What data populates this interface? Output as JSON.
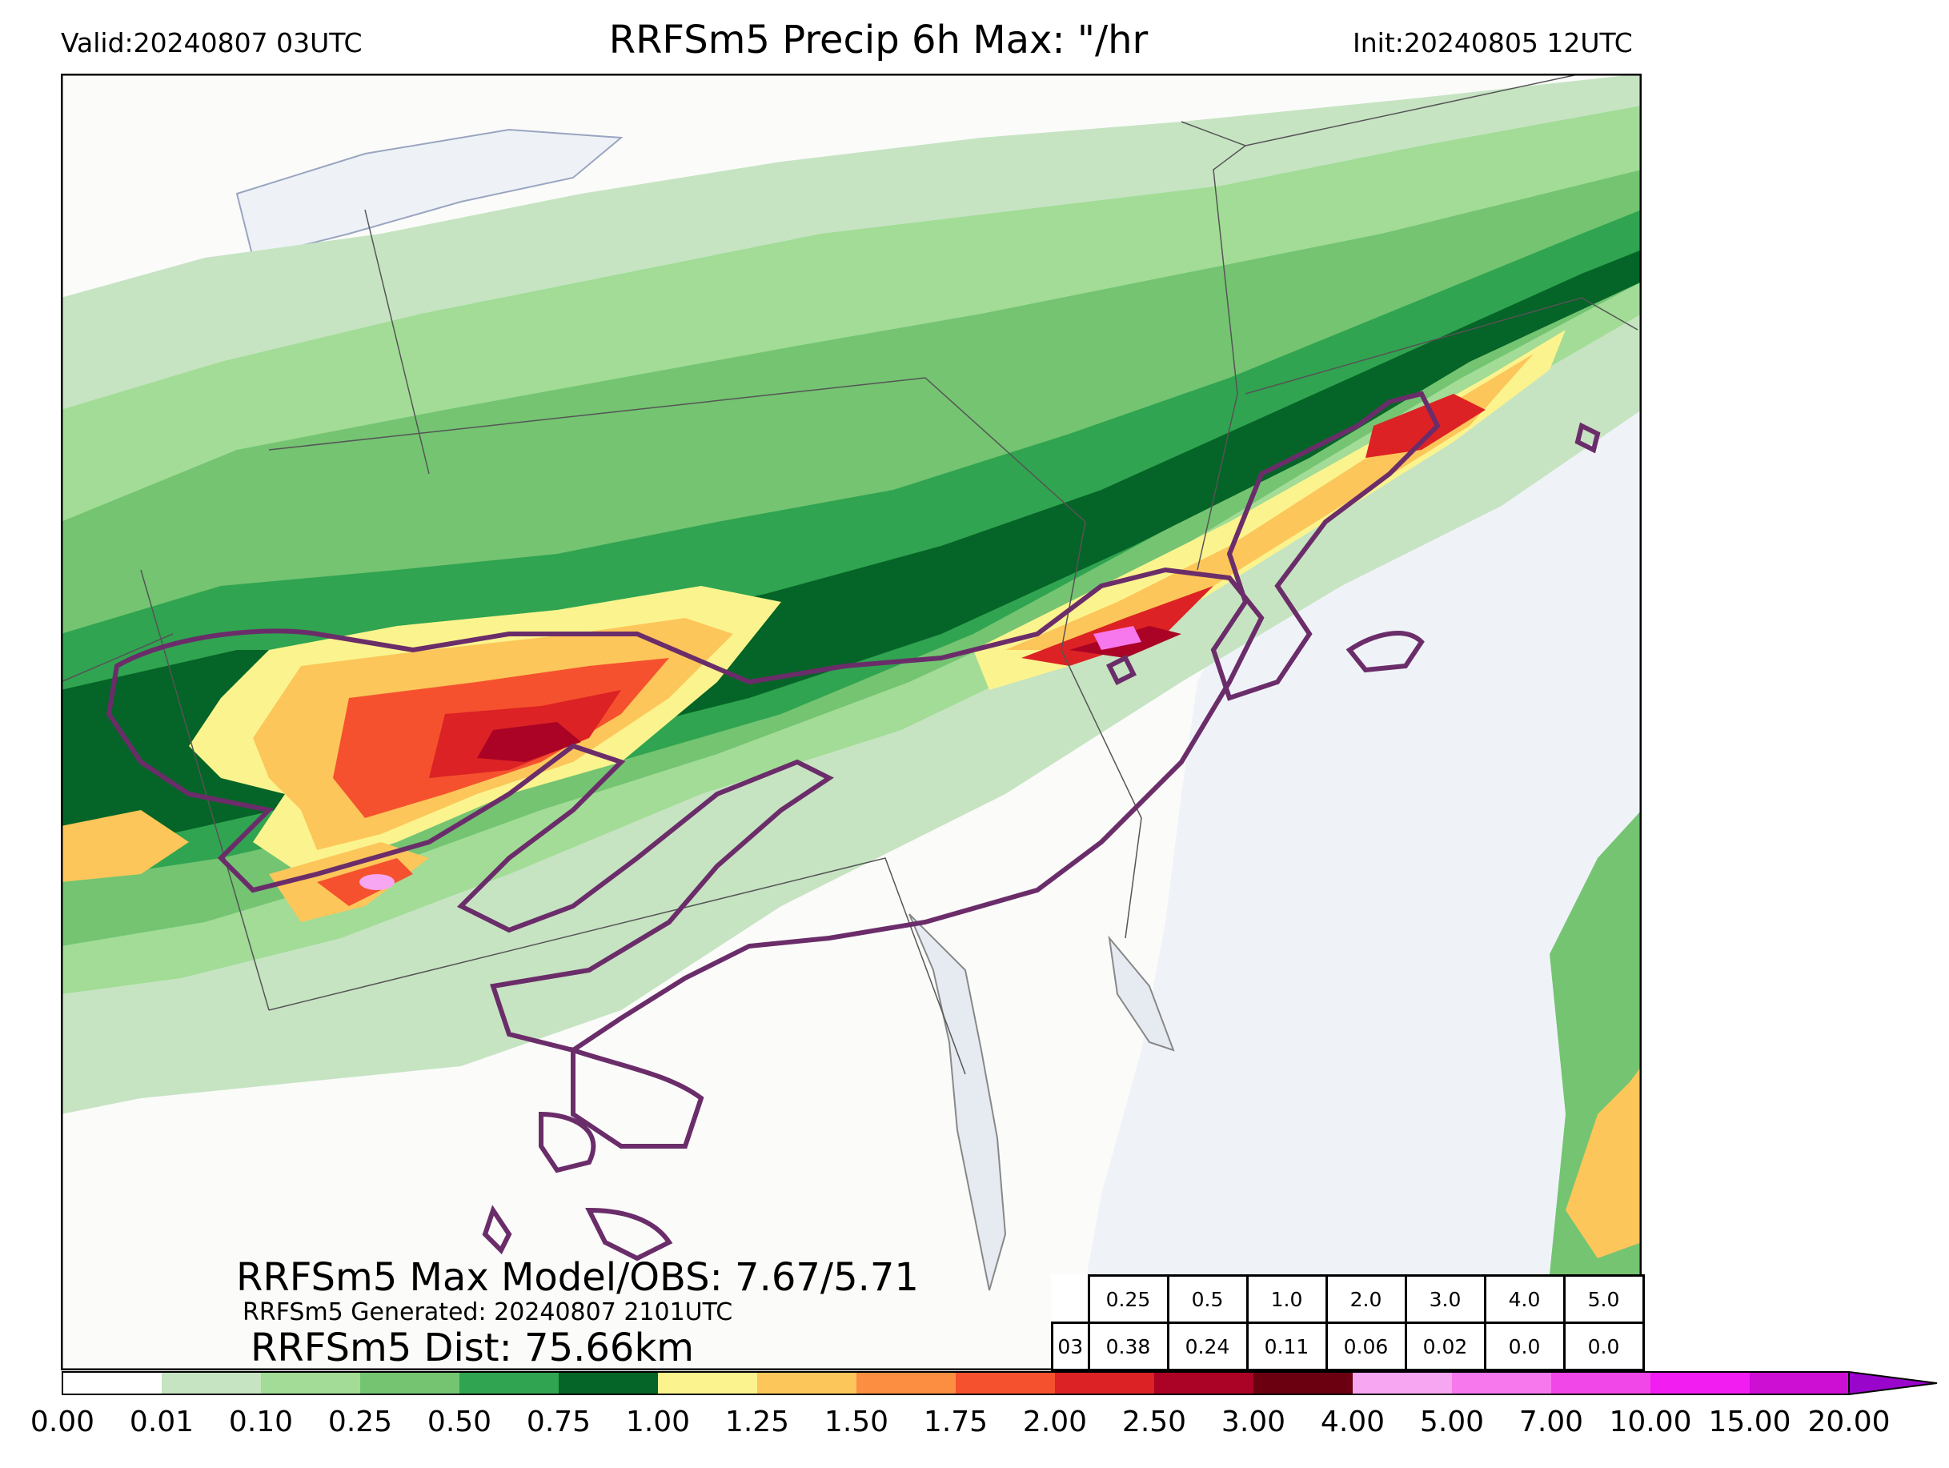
{
  "header": {
    "valid": "Valid:20240807 03UTC",
    "title": "RRFSm5 Precip 6h Max: \"/hr",
    "init": "Init:20240805 12UTC"
  },
  "stats": {
    "max_model_obs": "RRFSm5 Max Model/OBS: 7.67/5.71",
    "generated": "RRFSm5 Generated: 20240807 2101UTC",
    "distance": "RRFSm5 Dist: 75.66km"
  },
  "threshold_table": {
    "thresholds": [
      "0.25",
      "0.5",
      "1.0",
      "2.0",
      "3.0",
      "4.0",
      "5.0"
    ],
    "row_label": "03",
    "fractions": [
      "0.38",
      "0.24",
      "0.11",
      "0.06",
      "0.02",
      "0.0",
      "0.0"
    ]
  },
  "colorbar": {
    "labels": [
      "0.00",
      "0.01",
      "0.10",
      "0.25",
      "0.50",
      "0.75",
      "1.00",
      "1.25",
      "1.50",
      "1.75",
      "2.00",
      "2.50",
      "3.00",
      "4.00",
      "5.00",
      "7.00",
      "10.00",
      "15.00",
      "20.00"
    ],
    "colors": [
      "#ffffff",
      "#c6e4c2",
      "#a2dc96",
      "#74c472",
      "#30a450",
      "#056427",
      "#fbf48e",
      "#fdc65a",
      "#fc8e42",
      "#f5512e",
      "#dc2224",
      "#aa0325",
      "#6a0010",
      "#f7a6f1",
      "#f777ed",
      "#f147e8",
      "#f21df0",
      "#cc0fd3",
      "#9a05cc"
    ],
    "extend": "max"
  },
  "map": {
    "land_color": "#fbfbfa",
    "water_color": "#eff3f8",
    "obs_contour_color": "#6b2d6a",
    "border_color": "#555555"
  }
}
